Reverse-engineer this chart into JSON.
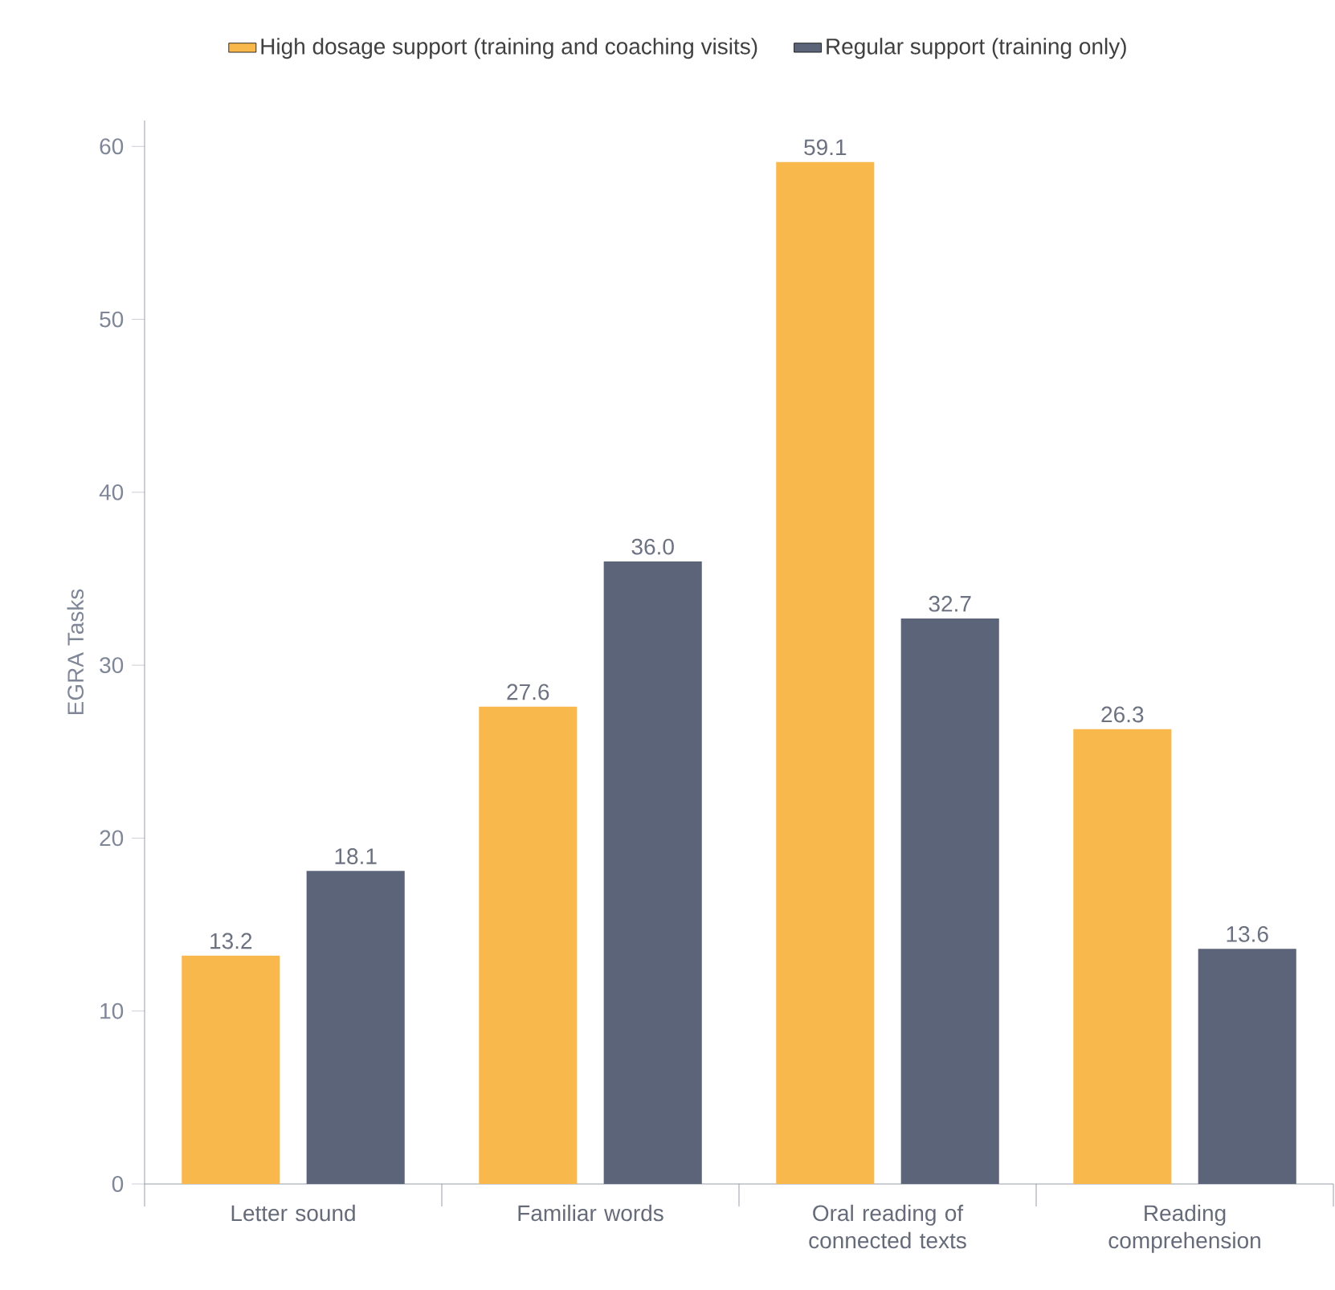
{
  "chart_data": {
    "type": "bar",
    "ylabel": "EGRA Tasks",
    "categories": [
      "Letter sound",
      "Familiar words",
      "Oral reading of connected texts",
      "Reading comprehension"
    ],
    "series": [
      {
        "name": "High dosage support (training and coaching visits)",
        "color": "#f9b84b",
        "values": [
          13.2,
          27.6,
          59.1,
          26.3
        ],
        "value_labels": [
          "13.2",
          "27.6",
          "59.1",
          "26.3"
        ]
      },
      {
        "name": "Regular support (training only)",
        "color": "#5c6479",
        "values": [
          18.1,
          36.0,
          32.7,
          13.6
        ],
        "value_labels": [
          "18.1",
          "36.0",
          "32.7",
          "13.6"
        ]
      }
    ],
    "ylim": [
      0,
      61.5
    ],
    "yticks": [
      0,
      10,
      20,
      30,
      40,
      50,
      60
    ],
    "grid": false,
    "legend": "top"
  }
}
